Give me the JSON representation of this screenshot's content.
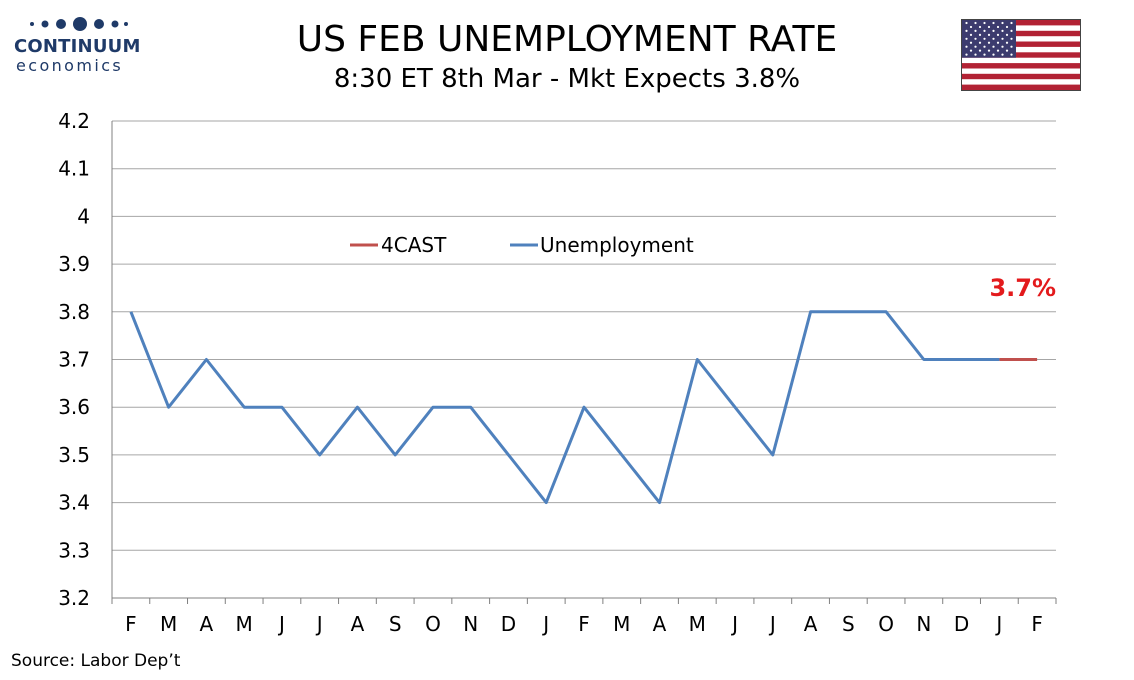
{
  "logo": {
    "brand": "CONTINUUM",
    "sub": "economics",
    "color": "#1f3a68"
  },
  "title": "US FEB UNEMPLOYMENT RATE",
  "subtitle": "8:30 ET 8th Mar - Mkt Expects 3.8%",
  "flag": {
    "country": "US",
    "icon": "us-flag-icon"
  },
  "source": "Source: Labor Dep’t",
  "chart_data": {
    "type": "line",
    "categories": [
      "F",
      "M",
      "A",
      "M",
      "J",
      "J",
      "A",
      "S",
      "O",
      "N",
      "D",
      "J",
      "F",
      "M",
      "A",
      "M",
      "J",
      "J",
      "A",
      "S",
      "O",
      "N",
      "D",
      "J",
      "F"
    ],
    "series": [
      {
        "name": "Unemployment",
        "color": "#4f81bd",
        "values": [
          3.8,
          3.6,
          3.7,
          3.6,
          3.6,
          3.5,
          3.6,
          3.5,
          3.6,
          3.6,
          3.5,
          3.4,
          3.6,
          3.5,
          3.4,
          3.7,
          3.6,
          3.5,
          3.8,
          3.8,
          3.8,
          3.7,
          3.7,
          3.7,
          null
        ]
      },
      {
        "name": "4CAST",
        "color": "#c0504d",
        "values": [
          null,
          null,
          null,
          null,
          null,
          null,
          null,
          null,
          null,
          null,
          null,
          null,
          null,
          null,
          null,
          null,
          null,
          null,
          null,
          null,
          null,
          null,
          null,
          3.7,
          3.7
        ]
      }
    ],
    "ylim": [
      3.2,
      4.2
    ],
    "yticks": [
      "3.2",
      "3.3",
      "3.4",
      "3.5",
      "3.6",
      "3.7",
      "3.8",
      "3.9",
      "4",
      "4.1",
      "4.2"
    ],
    "grid": true,
    "legend_position": "top-center",
    "annotation": {
      "text": "3.7%",
      "color": "#e31a1c"
    },
    "xlabel": "",
    "ylabel": ""
  }
}
